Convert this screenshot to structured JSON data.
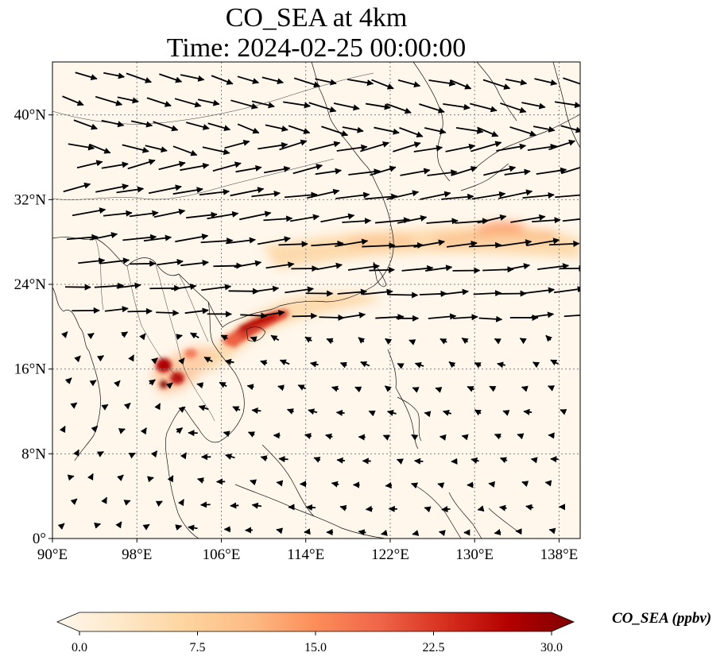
{
  "title": {
    "line1": "CO_SEA at 4km",
    "line2": "Time: 2024-02-25 00:00:00"
  },
  "map": {
    "lon_range": [
      90,
      140
    ],
    "lat_range": [
      0,
      45
    ],
    "x_ticks": [
      "90°E",
      "98°E",
      "106°E",
      "114°E",
      "122°E",
      "130°E",
      "138°E"
    ],
    "x_tick_values": [
      90,
      98,
      106,
      114,
      122,
      130,
      138
    ],
    "y_ticks": [
      "0°",
      "8°N",
      "16°N",
      "24°N",
      "32°N",
      "40°N"
    ],
    "y_tick_values": [
      0,
      8,
      16,
      24,
      32,
      40
    ],
    "gridlines": true
  },
  "colorbar": {
    "label": "CO_SEA (ppbv)",
    "ticks": [
      "0.0",
      "7.5",
      "15.0",
      "22.5",
      "30.0"
    ],
    "range": [
      0,
      30
    ],
    "colormap": "OrRd",
    "colors": [
      "#fff7ec",
      "#fee8c8",
      "#fdd49e",
      "#fdbb84",
      "#fc8d59",
      "#ef6548",
      "#d7301f",
      "#b30000",
      "#7f0000"
    ]
  }
}
